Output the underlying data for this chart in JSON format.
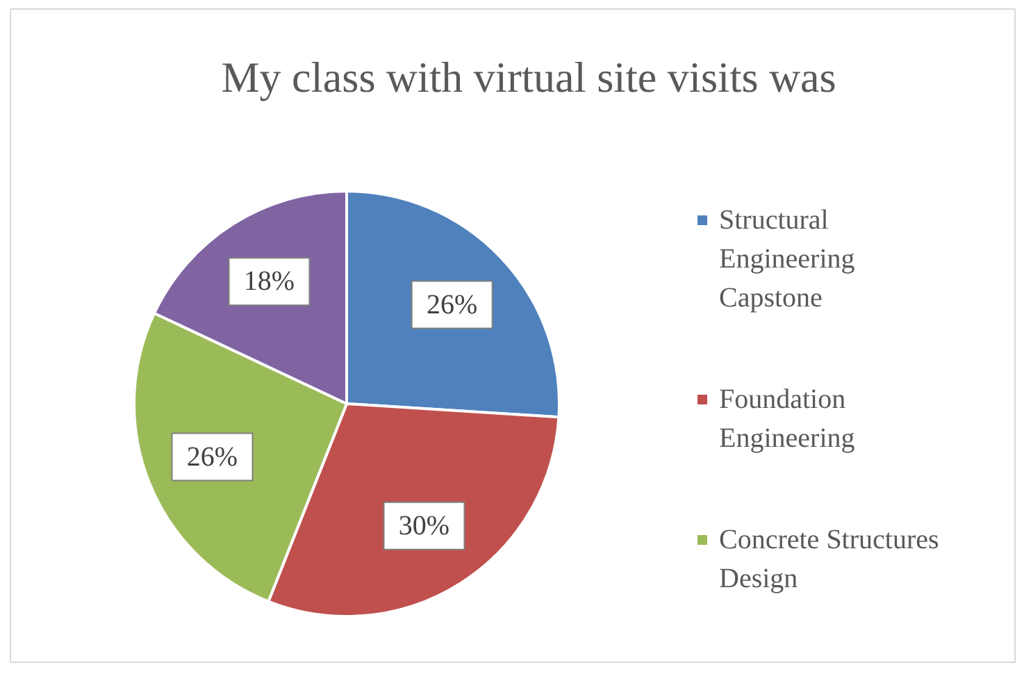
{
  "chart_data": {
    "type": "pie",
    "title": "My class with virtual site visits was",
    "categories": [
      "Structural Engineering Capstone",
      "Foundation Engineering",
      "Concrete Structures Design",
      null
    ],
    "values": [
      26,
      30,
      26,
      18
    ],
    "colors": [
      "#4f81bd",
      "#c0504d",
      "#9bbb59",
      "#8064a2"
    ],
    "value_labels": [
      "26%",
      "30%",
      "26%",
      "18%"
    ],
    "legend": "right"
  }
}
